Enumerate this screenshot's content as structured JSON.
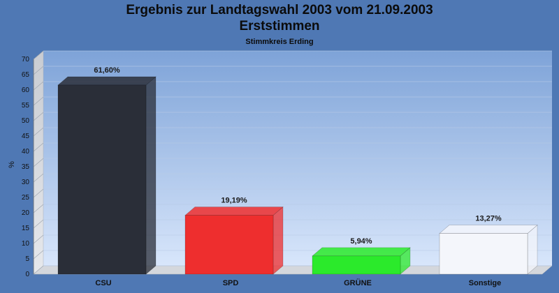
{
  "chart_data": {
    "type": "bar",
    "title": "Ergebnis zur Landtagswahl 2003 vom 21.09.2003",
    "subtitle": "Erststimmen",
    "subsubtitle": "Stimmkreis Erding",
    "ylabel": "%",
    "ylim": [
      0,
      70
    ],
    "yticks": [
      "0",
      "5",
      "10",
      "15",
      "20",
      "25",
      "30",
      "35",
      "40",
      "45",
      "50",
      "55",
      "60",
      "65",
      "70"
    ],
    "categories": [
      "CSU",
      "SPD",
      "GRÜNE",
      "Sonstige"
    ],
    "values": [
      61.6,
      19.19,
      5.94,
      13.27
    ],
    "value_labels": [
      "61,60%",
      "19,19%",
      "5,94%",
      "13,27%"
    ],
    "colors": [
      "#2a2e38",
      "#ee2e2e",
      "#2bea2b",
      "#f4f6fb"
    ],
    "grid": true
  }
}
